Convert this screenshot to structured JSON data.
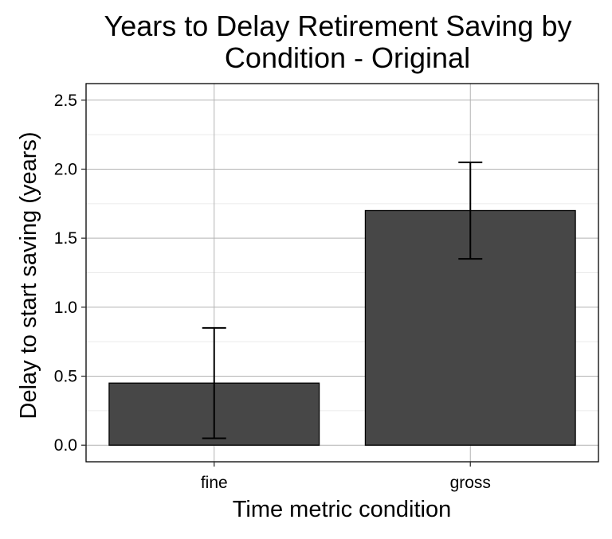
{
  "chart_data": {
    "type": "bar",
    "title_lines": [
      "Years to Delay Retirement Saving by",
      "Condition - Original"
    ],
    "xlabel": "Time metric condition",
    "ylabel": "Delay to start saving (years)",
    "categories": [
      "fine",
      "gross"
    ],
    "values": [
      0.45,
      1.7
    ],
    "error_low": [
      0.05,
      1.35
    ],
    "error_high": [
      0.85,
      2.05
    ],
    "ylim": [
      -0.12,
      2.62
    ],
    "yticks": [
      0.0,
      0.5,
      1.0,
      1.5,
      2.0,
      2.5
    ],
    "ytick_labels": [
      "0.0",
      "0.5",
      "1.0",
      "1.5",
      "2.0",
      "2.5"
    ],
    "grid": true,
    "bar_color": "#474747",
    "bar_stroke": "#000000",
    "grid_major_color": "#b3b3b3",
    "grid_minor_color": "#ebebeb",
    "background": "#ffffff"
  }
}
